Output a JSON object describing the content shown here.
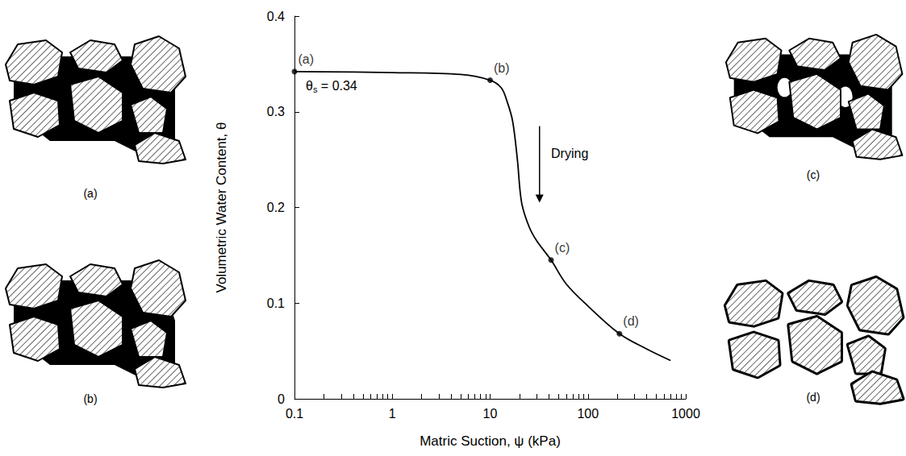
{
  "chart_data": {
    "type": "line",
    "x_label": "Matric Suction, ψ (kPa)",
    "y_label": "Volumetric Water Content, θ",
    "x": [
      0.1,
      1,
      5,
      10,
      13,
      15,
      17,
      19,
      21,
      25,
      30,
      42,
      60,
      100,
      210,
      400,
      700
    ],
    "values": [
      0.342,
      0.341,
      0.339,
      0.333,
      0.325,
      0.31,
      0.29,
      0.25,
      0.205,
      0.18,
      0.165,
      0.145,
      0.12,
      0.097,
      0.068,
      0.052,
      0.04
    ],
    "color": "#000000",
    "log": "x",
    "xlim": [
      0.1,
      1000
    ],
    "xticks": [
      0.1,
      1,
      10,
      100,
      1000
    ],
    "ylim": [
      0,
      0.4
    ],
    "yticks": [
      0,
      0.1,
      0.2,
      0.3,
      0.4
    ],
    "grid": false,
    "points": {
      "x": [
        0.1,
        10,
        42,
        210
      ],
      "values": [
        0.342,
        0.333,
        0.145,
        0.068
      ],
      "labels": [
        "(a)",
        "(b)",
        "(c)",
        "(d)"
      ]
    },
    "annotations": [
      "θs = 0.34",
      "Drying"
    ],
    "figure_labels": [
      "(a)",
      "(b)",
      "(c)",
      "(d)"
    ]
  }
}
